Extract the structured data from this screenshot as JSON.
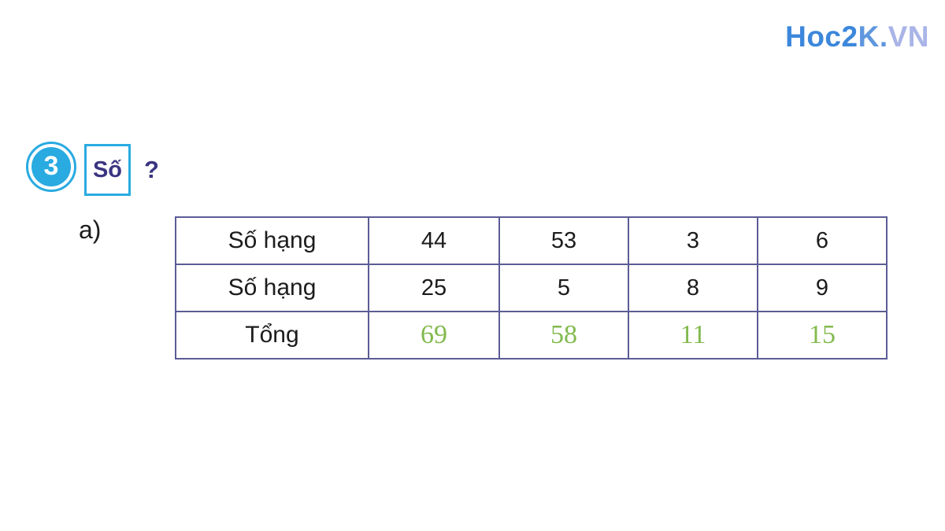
{
  "logo": {
    "text_blue": "Hoc2",
    "text_mid": "K.",
    "text_light": "VN"
  },
  "problem": {
    "number": "3",
    "box_label": "Số",
    "question_mark": "?",
    "part_label": "a)"
  },
  "table": {
    "rows": [
      {
        "label": "Số hạng",
        "values": [
          "44",
          "53",
          "3",
          "6"
        ]
      },
      {
        "label": "Số hạng",
        "values": [
          "25",
          "5",
          "8",
          "9"
        ]
      },
      {
        "label": "Tổng",
        "values": [
          "69",
          "58",
          "11",
          "15"
        ]
      }
    ]
  },
  "colors": {
    "accent_cyan": "#29aae1",
    "navy_text": "#3a3580",
    "table_border": "#5c5c96",
    "sum_green": "#82ba4e",
    "logo_blue": "#3c87db",
    "logo_light": "#a9b4e7"
  }
}
